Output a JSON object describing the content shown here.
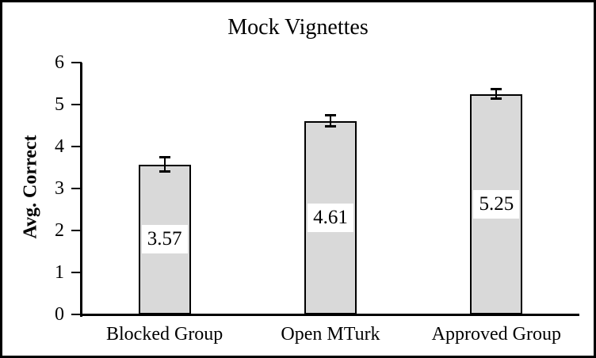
{
  "chart_data": {
    "type": "bar",
    "title": "Mock Vignettes",
    "ylabel": "Avg. Correct",
    "xlabel": "",
    "categories": [
      "Blocked Group",
      "Open MTurk",
      "Approved Group"
    ],
    "values": [
      3.57,
      4.61,
      5.25
    ],
    "data_labels": [
      "3.57",
      "4.61",
      "5.25"
    ],
    "error_bars_plus_minus": [
      0.18,
      0.14,
      0.12
    ],
    "ylim": [
      0,
      6
    ],
    "yticks": [
      0,
      1,
      2,
      3,
      4,
      5,
      6
    ],
    "ytick_labels": [
      "0",
      "1",
      "2",
      "3",
      "4",
      "5",
      "6"
    ],
    "grid": false,
    "legend": false,
    "colors": {
      "bar_fill": "#d9d9d9",
      "bar_border": "#000000",
      "axis": "#000000",
      "text": "#000000",
      "background": "#ffffff",
      "frame_border": "#000000",
      "data_label_bg": "#ffffff"
    }
  }
}
